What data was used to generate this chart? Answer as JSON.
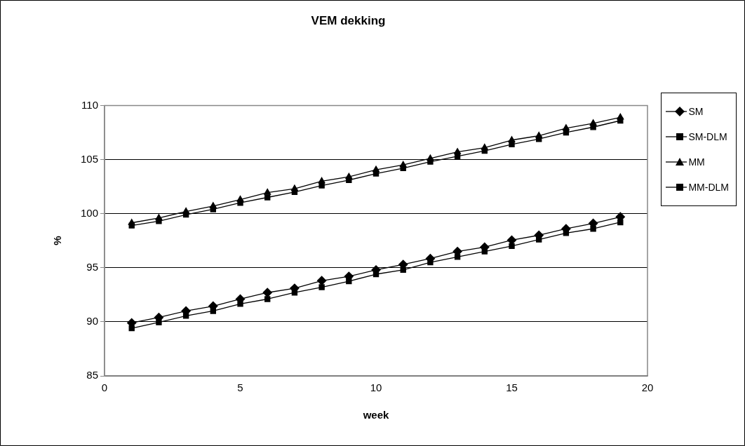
{
  "chart_data": {
    "type": "line",
    "title": "VEM dekking",
    "xlabel": "week",
    "ylabel": "%",
    "x": [
      1,
      2,
      3,
      4,
      5,
      6,
      7,
      8,
      9,
      10,
      11,
      12,
      13,
      14,
      15,
      16,
      17,
      18,
      19
    ],
    "series": [
      {
        "name": "SM",
        "color": "#000000",
        "marker": "diamond",
        "values": [
          89.9,
          90.4,
          91.0,
          91.45,
          92.1,
          92.7,
          93.1,
          93.8,
          94.2,
          94.8,
          95.3,
          95.85,
          96.5,
          96.9,
          97.55,
          98.0,
          98.6,
          99.1,
          99.7
        ]
      },
      {
        "name": "SM-DLM",
        "color": "#000000",
        "marker": "square",
        "values": [
          89.4,
          89.95,
          90.55,
          91.0,
          91.65,
          92.1,
          92.7,
          93.2,
          93.75,
          94.4,
          94.8,
          95.5,
          96.0,
          96.5,
          97.0,
          97.6,
          98.2,
          98.6,
          99.2
        ]
      },
      {
        "name": "MM",
        "color": "#000000",
        "marker": "triangle",
        "values": [
          99.15,
          99.6,
          100.2,
          100.7,
          101.3,
          101.95,
          102.3,
          103.0,
          103.4,
          104.05,
          104.5,
          105.1,
          105.7,
          106.1,
          106.8,
          107.2,
          107.9,
          108.35,
          108.9
        ]
      },
      {
        "name": "MM-DLM",
        "color": "#000000",
        "marker": "square",
        "values": [
          98.9,
          99.3,
          99.9,
          100.4,
          101.0,
          101.5,
          102.0,
          102.6,
          103.1,
          103.7,
          104.2,
          104.8,
          105.3,
          105.8,
          106.4,
          106.9,
          107.5,
          108.0,
          108.6
        ]
      }
    ],
    "xlim": [
      0,
      20
    ],
    "xticks": [
      0,
      5,
      10,
      15,
      20
    ],
    "ylim": [
      85,
      110
    ],
    "yticks": [
      85,
      90,
      95,
      100,
      105,
      110
    ],
    "grid": "y",
    "legend": "top right",
    "line_style": "solid"
  }
}
